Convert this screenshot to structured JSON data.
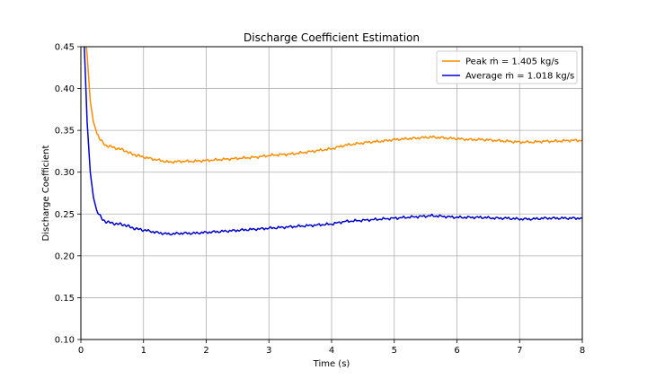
{
  "chart_data": {
    "type": "line",
    "title": "Discharge Coefficient Estimation",
    "xlabel": "Time (s)",
    "ylabel": "Discharge Coefficient",
    "xlim": [
      0,
      8
    ],
    "ylim": [
      0.1,
      0.45
    ],
    "x_ticks": [
      0,
      1,
      2,
      3,
      4,
      5,
      6,
      7,
      8
    ],
    "x_tick_labels": [
      "0",
      "1",
      "2",
      "3",
      "4",
      "5",
      "6",
      "7",
      "8"
    ],
    "y_ticks": [
      0.1,
      0.15,
      0.2,
      0.25,
      0.3,
      0.35,
      0.4,
      0.45
    ],
    "y_tick_labels": [
      "0.10",
      "0.15",
      "0.20",
      "0.25",
      "0.30",
      "0.35",
      "0.40",
      "0.45"
    ],
    "grid": true,
    "legend_position": "top-right",
    "series": [
      {
        "name": "Peak ṁ = 1.405 kg/s",
        "color": "#ff8c00",
        "x": [
          0.05,
          0.1,
          0.15,
          0.2,
          0.25,
          0.3,
          0.35,
          0.4,
          0.5,
          0.6,
          0.7,
          0.8,
          0.9,
          1.0,
          1.2,
          1.4,
          1.6,
          1.8,
          2.0,
          2.2,
          2.4,
          2.6,
          2.8,
          3.0,
          3.2,
          3.4,
          3.6,
          3.8,
          4.0,
          4.2,
          4.4,
          4.6,
          4.8,
          5.0,
          5.2,
          5.4,
          5.6,
          5.8,
          6.0,
          6.2,
          6.4,
          6.6,
          6.8,
          7.0,
          7.2,
          7.4,
          7.6,
          7.8,
          8.0
        ],
        "y": [
          0.48,
          0.44,
          0.385,
          0.36,
          0.348,
          0.34,
          0.335,
          0.332,
          0.33,
          0.328,
          0.326,
          0.322,
          0.32,
          0.318,
          0.315,
          0.312,
          0.313,
          0.313,
          0.314,
          0.315,
          0.316,
          0.317,
          0.318,
          0.32,
          0.321,
          0.322,
          0.324,
          0.326,
          0.328,
          0.332,
          0.334,
          0.336,
          0.337,
          0.339,
          0.34,
          0.341,
          0.342,
          0.341,
          0.34,
          0.339,
          0.339,
          0.338,
          0.337,
          0.336,
          0.336,
          0.337,
          0.337,
          0.338,
          0.338
        ]
      },
      {
        "name": "Average ṁ = 1.018 kg/s",
        "color": "#0000cd",
        "x": [
          0.05,
          0.1,
          0.15,
          0.2,
          0.25,
          0.3,
          0.35,
          0.4,
          0.5,
          0.6,
          0.7,
          0.8,
          0.9,
          1.0,
          1.2,
          1.4,
          1.6,
          1.8,
          2.0,
          2.2,
          2.4,
          2.6,
          2.8,
          3.0,
          3.2,
          3.4,
          3.6,
          3.8,
          4.0,
          4.2,
          4.4,
          4.6,
          4.8,
          5.0,
          5.2,
          5.4,
          5.6,
          5.8,
          6.0,
          6.2,
          6.4,
          6.6,
          6.8,
          7.0,
          7.2,
          7.4,
          7.6,
          7.8,
          8.0
        ],
        "y": [
          0.46,
          0.36,
          0.3,
          0.27,
          0.255,
          0.248,
          0.243,
          0.241,
          0.239,
          0.238,
          0.237,
          0.234,
          0.232,
          0.231,
          0.228,
          0.226,
          0.227,
          0.227,
          0.228,
          0.229,
          0.23,
          0.231,
          0.232,
          0.233,
          0.234,
          0.235,
          0.236,
          0.237,
          0.238,
          0.241,
          0.242,
          0.243,
          0.244,
          0.245,
          0.246,
          0.247,
          0.248,
          0.247,
          0.246,
          0.246,
          0.246,
          0.245,
          0.245,
          0.244,
          0.244,
          0.245,
          0.245,
          0.245,
          0.245
        ]
      }
    ]
  }
}
